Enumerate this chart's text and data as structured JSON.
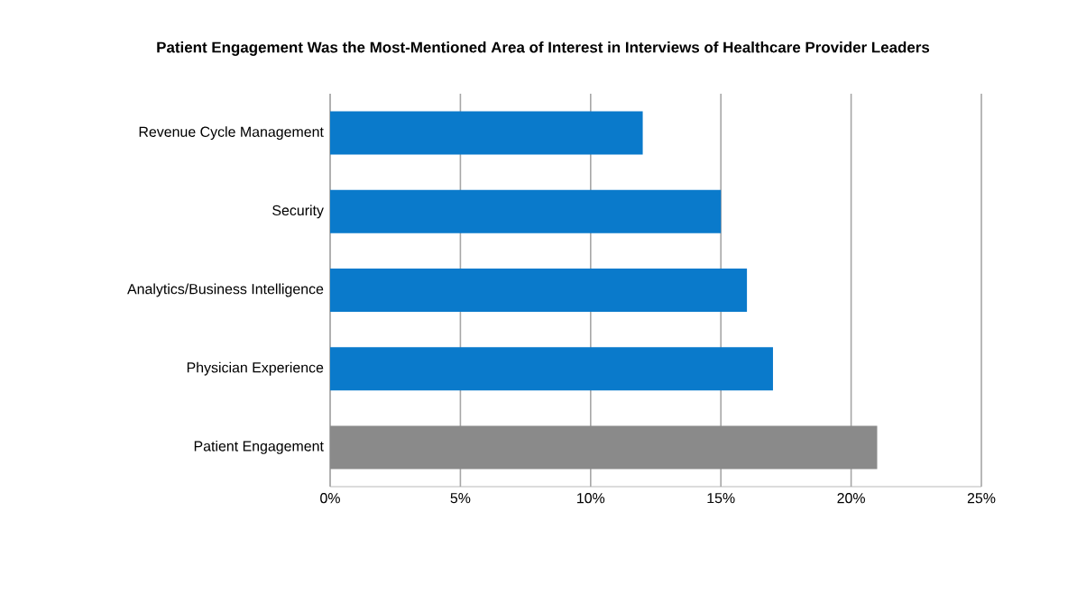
{
  "chart_data": {
    "type": "bar",
    "orientation": "horizontal",
    "title": "Patient Engagement Was the Most-Mentioned Area of Interest in Interviews of Healthcare Provider Leaders",
    "categories": [
      "Revenue Cycle Management",
      "Security",
      "Analytics/Business Intelligence",
      "Physician Experience",
      "Patient Engagement"
    ],
    "values": [
      12,
      15,
      16,
      17,
      21
    ],
    "colors": [
      "#0a7acb",
      "#0a7acb",
      "#0a7acb",
      "#0a7acb",
      "#8a8a8a"
    ],
    "xlim": [
      0,
      25
    ],
    "xticks": [
      {
        "value": 0,
        "label": "0%"
      },
      {
        "value": 5,
        "label": "5%"
      },
      {
        "value": 10,
        "label": "10%"
      },
      {
        "value": 15,
        "label": "15%"
      },
      {
        "value": 20,
        "label": "20%"
      },
      {
        "value": 25,
        "label": "25%"
      }
    ],
    "grid": "x"
  }
}
